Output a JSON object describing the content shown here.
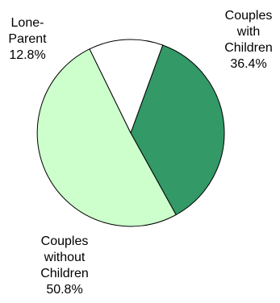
{
  "chart_data": {
    "type": "pie",
    "title": "",
    "slices": [
      {
        "label_lines": [
          "Couples",
          "with",
          "Children"
        ],
        "value": 36.4,
        "value_label": "36.4%",
        "color": "#339966"
      },
      {
        "label_lines": [
          "Couples",
          "without",
          "Children"
        ],
        "value": 50.8,
        "value_label": "50.8%",
        "color": "#ccffcc"
      },
      {
        "label_lines": [
          "Lone-",
          "Parent"
        ],
        "value": 12.8,
        "value_label": "12.8%",
        "color": "#ffffff"
      }
    ],
    "legend": "none"
  }
}
